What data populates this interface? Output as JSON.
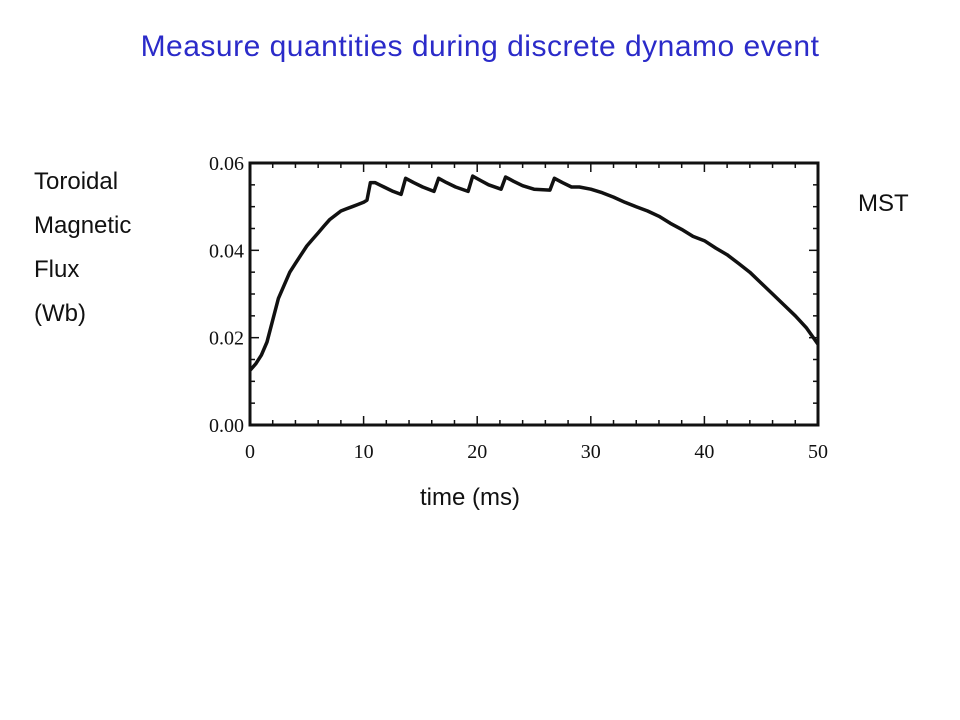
{
  "title": "Measure quantities during discrete dynamo event",
  "ylabel_lines": [
    "Toroidal",
    "Magnetic",
    "Flux",
    "(Wb)"
  ],
  "xlabel": "time (ms)",
  "annotation": "MST",
  "chart_data": {
    "type": "line",
    "title": "Measure quantities during discrete dynamo event",
    "xlabel": "time (ms)",
    "ylabel": "Toroidal Magnetic Flux (Wb)",
    "xlim": [
      0,
      50
    ],
    "ylim": [
      0,
      0.06
    ],
    "xticks": [
      "0",
      "10",
      "20",
      "30",
      "40",
      "50"
    ],
    "yticks": [
      "0.00",
      "0.02",
      "0.04",
      "0.06"
    ],
    "grid": false,
    "series": [
      {
        "values_x": [
          0,
          0.5,
          1,
          1.5,
          2,
          2.5,
          3,
          3.5,
          4,
          4.5,
          5,
          5.5,
          6,
          6.5,
          7,
          7.5,
          8,
          8.5,
          9,
          9.5,
          10,
          10.3,
          10.6,
          11,
          11.8,
          12.6,
          13.3,
          13.7,
          14.4,
          15.2,
          16.2,
          16.6,
          17.3,
          18.1,
          19.2,
          19.6,
          20.3,
          21,
          22.1,
          22.5,
          23.2,
          24,
          25,
          26.4,
          26.8,
          27.5,
          28.3,
          29,
          30,
          31,
          32,
          33,
          34,
          35,
          36,
          37,
          38,
          39,
          40,
          41,
          42,
          43,
          44,
          45,
          46,
          47,
          48,
          49,
          50
        ],
        "values_y": [
          0.0125,
          0.014,
          0.016,
          0.019,
          0.024,
          0.029,
          0.032,
          0.035,
          0.037,
          0.039,
          0.041,
          0.0425,
          0.044,
          0.0455,
          0.047,
          0.048,
          0.049,
          0.0495,
          0.05,
          0.0505,
          0.051,
          0.0515,
          0.0555,
          0.0555,
          0.0545,
          0.0535,
          0.0528,
          0.0565,
          0.0555,
          0.0545,
          0.0535,
          0.0565,
          0.0555,
          0.0545,
          0.0535,
          0.057,
          0.056,
          0.055,
          0.054,
          0.0568,
          0.0558,
          0.0548,
          0.054,
          0.0538,
          0.0565,
          0.0555,
          0.0545,
          0.0545,
          0.054,
          0.0532,
          0.0522,
          0.051,
          0.05,
          0.049,
          0.0478,
          0.0462,
          0.0448,
          0.0432,
          0.0422,
          0.0405,
          0.039,
          0.037,
          0.035,
          0.0325,
          0.03,
          0.0275,
          0.025,
          0.0222,
          0.0185
        ]
      }
    ]
  }
}
